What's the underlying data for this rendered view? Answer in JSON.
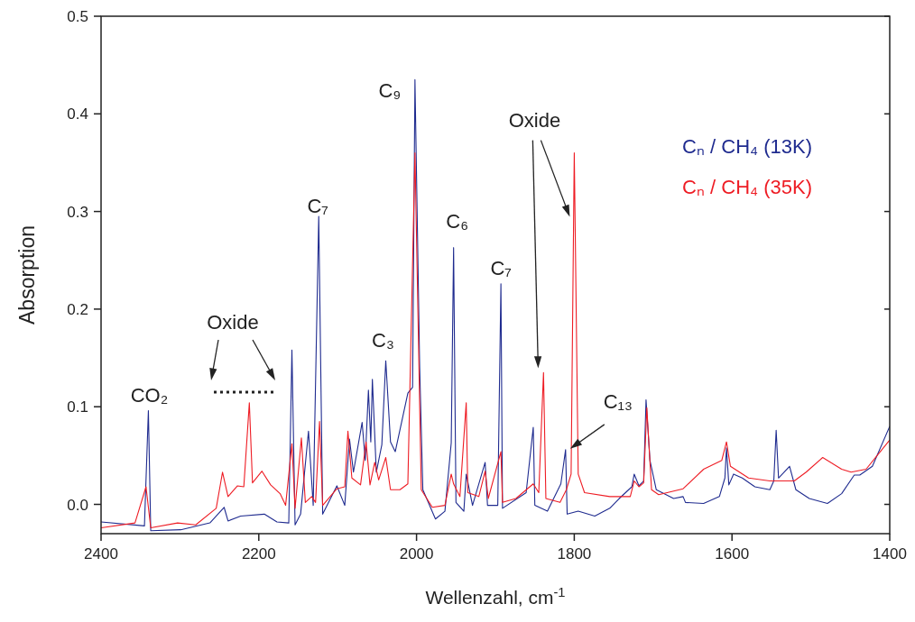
{
  "chart_data": {
    "type": "line",
    "xlabel": "Wellenzahl, cm$^{-1}$",
    "ylabel": "Absorption",
    "xlim": [
      2400,
      1400
    ],
    "xticks": [
      2400,
      2200,
      2000,
      1800,
      1600,
      1400
    ],
    "ylim": [
      -0.03,
      0.5
    ],
    "yticks": [
      {
        "value": 0,
        "label": "0.0"
      },
      0.1,
      0.2,
      0.3,
      0.4,
      0.5
    ],
    "grid": false,
    "legend": "top right",
    "marker": "none",
    "line_style": "solid",
    "series": [
      {
        "name": "Cₙ / CH₄ (13K)",
        "color": "#1f2b8f",
        "x": [
          2400,
          2345,
          2340,
          2337,
          2299,
          2262,
          2244,
          2239,
          2223,
          2193,
          2177,
          2162,
          2158,
          2154,
          2147,
          2137,
          2131,
          2124,
          2119,
          2101,
          2091,
          2085,
          2080,
          2069,
          2065,
          2061,
          2058,
          2056,
          2051,
          2044,
          2039,
          2033,
          2027,
          2011,
          2005,
          2002,
          1996,
          1992,
          1976,
          1964,
          1956,
          1953,
          1950,
          1940,
          1937,
          1929,
          1913,
          1910,
          1897,
          1893,
          1891,
          1861,
          1852,
          1850,
          1834,
          1817,
          1811,
          1809,
          1795,
          1774,
          1755,
          1743,
          1727,
          1724,
          1718,
          1712,
          1709,
          1704,
          1696,
          1674,
          1662,
          1659,
          1636,
          1616,
          1609,
          1607,
          1604,
          1598,
          1587,
          1571,
          1552,
          1547,
          1544,
          1541,
          1527,
          1519,
          1502,
          1479,
          1461,
          1445,
          1438,
          1422,
          1400
        ],
        "values": [
          -0.018,
          -0.022,
          0.096,
          -0.027,
          -0.026,
          -0.019,
          -0.003,
          -0.017,
          -0.012,
          -0.01,
          -0.018,
          -0.019,
          0.158,
          -0.021,
          -0.01,
          0.075,
          -0.001,
          0.295,
          -0.01,
          0.019,
          -0.001,
          0.067,
          0.033,
          0.084,
          0.045,
          0.117,
          0.064,
          0.128,
          0.033,
          0.061,
          0.147,
          0.064,
          0.054,
          0.114,
          0.12,
          0.435,
          0.14,
          0.015,
          -0.015,
          -0.007,
          0.063,
          0.263,
          0.002,
          -0.007,
          0.031,
          -0.001,
          0.043,
          -0.001,
          -0.001,
          0.226,
          -0.004,
          0.012,
          0.079,
          -0.001,
          -0.007,
          0.021,
          0.056,
          -0.01,
          -0.007,
          -0.012,
          -0.004,
          0.006,
          0.018,
          0.031,
          0.019,
          0.024,
          0.107,
          0.045,
          0.015,
          0.006,
          0.008,
          0.002,
          0.001,
          0.008,
          0.027,
          0.058,
          0.02,
          0.031,
          0.027,
          0.018,
          0.015,
          0.024,
          0.076,
          0.027,
          0.039,
          0.015,
          0.006,
          0.001,
          0.011,
          0.03,
          0.03,
          0.039,
          0.08
        ]
      },
      {
        "name": "Cₙ / CH₄ (35K)",
        "color": "#ee1c24",
        "x": [
          2400,
          2357,
          2343,
          2337,
          2303,
          2280,
          2254,
          2246,
          2239,
          2227,
          2219,
          2212,
          2208,
          2196,
          2185,
          2173,
          2166,
          2158,
          2154,
          2146,
          2141,
          2133,
          2128,
          2123,
          2119,
          2101,
          2091,
          2087,
          2082,
          2071,
          2064,
          2059,
          2053,
          2048,
          2039,
          2033,
          2021,
          2011,
          2002,
          1994,
          1980,
          1964,
          1956,
          1953,
          1945,
          1937,
          1935,
          1921,
          1913,
          1909,
          1893,
          1891,
          1874,
          1852,
          1845,
          1839,
          1836,
          1818,
          1810,
          1804,
          1800,
          1795,
          1787,
          1755,
          1729,
          1724,
          1718,
          1712,
          1708,
          1702,
          1693,
          1662,
          1636,
          1613,
          1607,
          1602,
          1579,
          1552,
          1521,
          1506,
          1485,
          1461,
          1449,
          1430,
          1400
        ],
        "values": [
          -0.024,
          -0.019,
          0.018,
          -0.024,
          -0.019,
          -0.021,
          -0.004,
          0.033,
          0.008,
          0.019,
          0.018,
          0.104,
          0.022,
          0.034,
          0.02,
          0.011,
          -0.001,
          0.062,
          -0.004,
          0.068,
          0.002,
          0.008,
          0.002,
          0.085,
          -0.001,
          0.016,
          0.018,
          0.075,
          0.027,
          0.02,
          0.064,
          0.02,
          0.043,
          0.025,
          0.048,
          0.015,
          0.015,
          0.021,
          0.36,
          0.015,
          -0.003,
          -0.001,
          0.031,
          0.021,
          0.008,
          0.104,
          0.012,
          0.008,
          0.034,
          0.006,
          0.054,
          0.002,
          0.006,
          0.021,
          0.012,
          0.135,
          0.006,
          0.002,
          0.015,
          0.031,
          0.36,
          0.031,
          0.012,
          0.008,
          0.008,
          0.024,
          0.018,
          0.022,
          0.099,
          0.015,
          0.01,
          0.016,
          0.036,
          0.045,
          0.064,
          0.039,
          0.027,
          0.024,
          0.024,
          0.033,
          0.048,
          0.036,
          0.033,
          0.036,
          0.066
        ]
      }
    ],
    "annotations": [
      {
        "text": "CO₂",
        "x": 2340,
        "y": 0.096
      },
      "Oxide",
      {
        "text": "C₇",
        "x": 2124,
        "y": 0.295
      },
      {
        "text": "C₃",
        "x": 2039,
        "y": 0.147
      },
      {
        "text": "C₉",
        "x": 2002,
        "y": 0.435
      },
      {
        "text": "C₆",
        "x": 1953,
        "y": 0.263
      },
      {
        "text": "C₇",
        "x": 1893,
        "y": 0.226
      },
      {
        "text": "Oxide",
        "x": 1800,
        "y": 0.36
      },
      {
        "text": "C₁₃",
        "x": 1811,
        "y": 0.056
      }
    ]
  }
}
